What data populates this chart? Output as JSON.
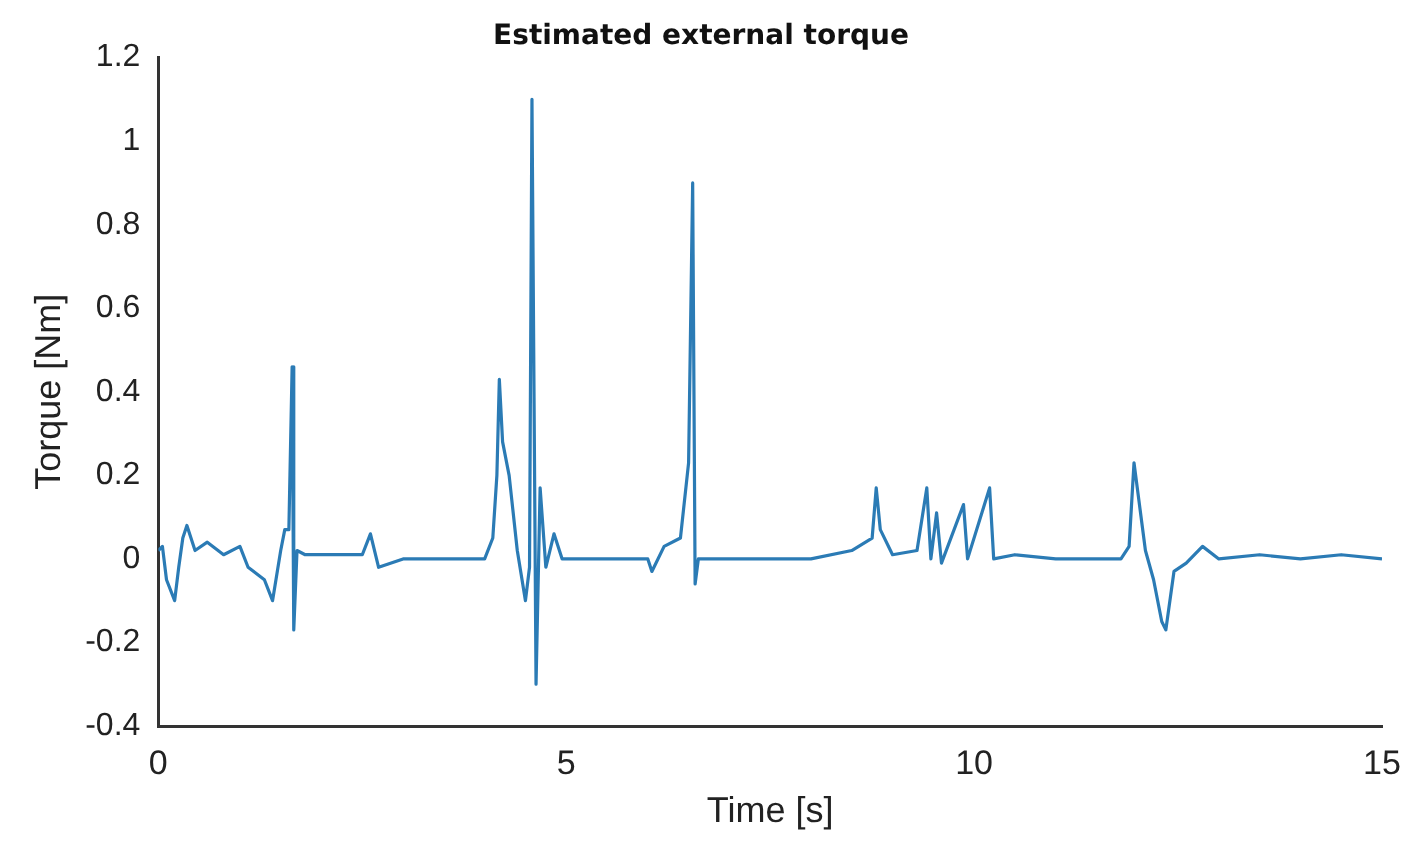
{
  "chart_data": {
    "type": "line",
    "title": "Estimated external torque",
    "xlabel": "Time [s]",
    "ylabel": "Torque [Nm]",
    "x": [
      0,
      0.05,
      0.1,
      0.2,
      0.25,
      0.3,
      0.35,
      0.45,
      0.6,
      0.8,
      1.0,
      1.1,
      1.3,
      1.4,
      1.5,
      1.55,
      1.6,
      1.64,
      1.66,
      1.7,
      1.8,
      2.2,
      2.5,
      2.6,
      2.7,
      3.0,
      3.5,
      4.0,
      4.1,
      4.15,
      4.18,
      4.22,
      4.3,
      4.4,
      4.5,
      4.55,
      4.58,
      4.63,
      4.68,
      4.75,
      4.85,
      4.95,
      5.0,
      5.5,
      6.0,
      6.05,
      6.2,
      6.4,
      6.5,
      6.55,
      6.58,
      6.62,
      6.7,
      7.0,
      7.5,
      8.0,
      8.5,
      8.75,
      8.8,
      8.85,
      9.0,
      9.3,
      9.42,
      9.47,
      9.54,
      9.6,
      9.87,
      9.92,
      10.19,
      10.24,
      10.5,
      11.0,
      11.5,
      11.8,
      11.9,
      11.96,
      12.02,
      12.1,
      12.2,
      12.3,
      12.35,
      12.45,
      12.6,
      12.8,
      13.0,
      13.5,
      14.0,
      14.5,
      15
    ],
    "series": [
      {
        "color": "#2b7bb5",
        "values": [
          0.02,
          0.03,
          -0.05,
          -0.1,
          -0.02,
          0.05,
          0.08,
          0.02,
          0.04,
          0.01,
          0.03,
          -0.02,
          -0.05,
          -0.1,
          0.02,
          0.07,
          0.07,
          0.46,
          -0.17,
          0.02,
          0.01,
          0.01,
          0.01,
          0.06,
          -0.02,
          0.0,
          0.0,
          0.0,
          0.05,
          0.2,
          0.43,
          0.28,
          0.2,
          0.02,
          -0.1,
          -0.02,
          1.1,
          -0.3,
          0.17,
          -0.02,
          0.06,
          0.0,
          0.0,
          0.0,
          0.0,
          -0.03,
          0.03,
          0.05,
          0.23,
          0.9,
          -0.06,
          0.0,
          0.0,
          0.0,
          0.0,
          0.0,
          0.02,
          0.05,
          0.17,
          0.07,
          0.01,
          0.02,
          0.17,
          0.0,
          0.11,
          -0.01,
          0.13,
          0.0,
          0.17,
          0.0,
          0.01,
          0.0,
          0.0,
          0.0,
          0.03,
          0.23,
          0.14,
          0.02,
          -0.05,
          -0.15,
          -0.17,
          -0.03,
          -0.01,
          0.03,
          0.0,
          0.01,
          0.0,
          0.01,
          0.0
        ]
      }
    ],
    "xlim": [
      0,
      15
    ],
    "xticks": [
      0,
      5,
      10,
      15
    ],
    "ylim": [
      -0.4,
      1.2
    ],
    "yticks": [
      -0.4,
      -0.2,
      0,
      0.2,
      0.4,
      0.6,
      0.8,
      1,
      1.2
    ],
    "grid": false,
    "legend": false,
    "marker": "none",
    "line_style": "solid"
  }
}
